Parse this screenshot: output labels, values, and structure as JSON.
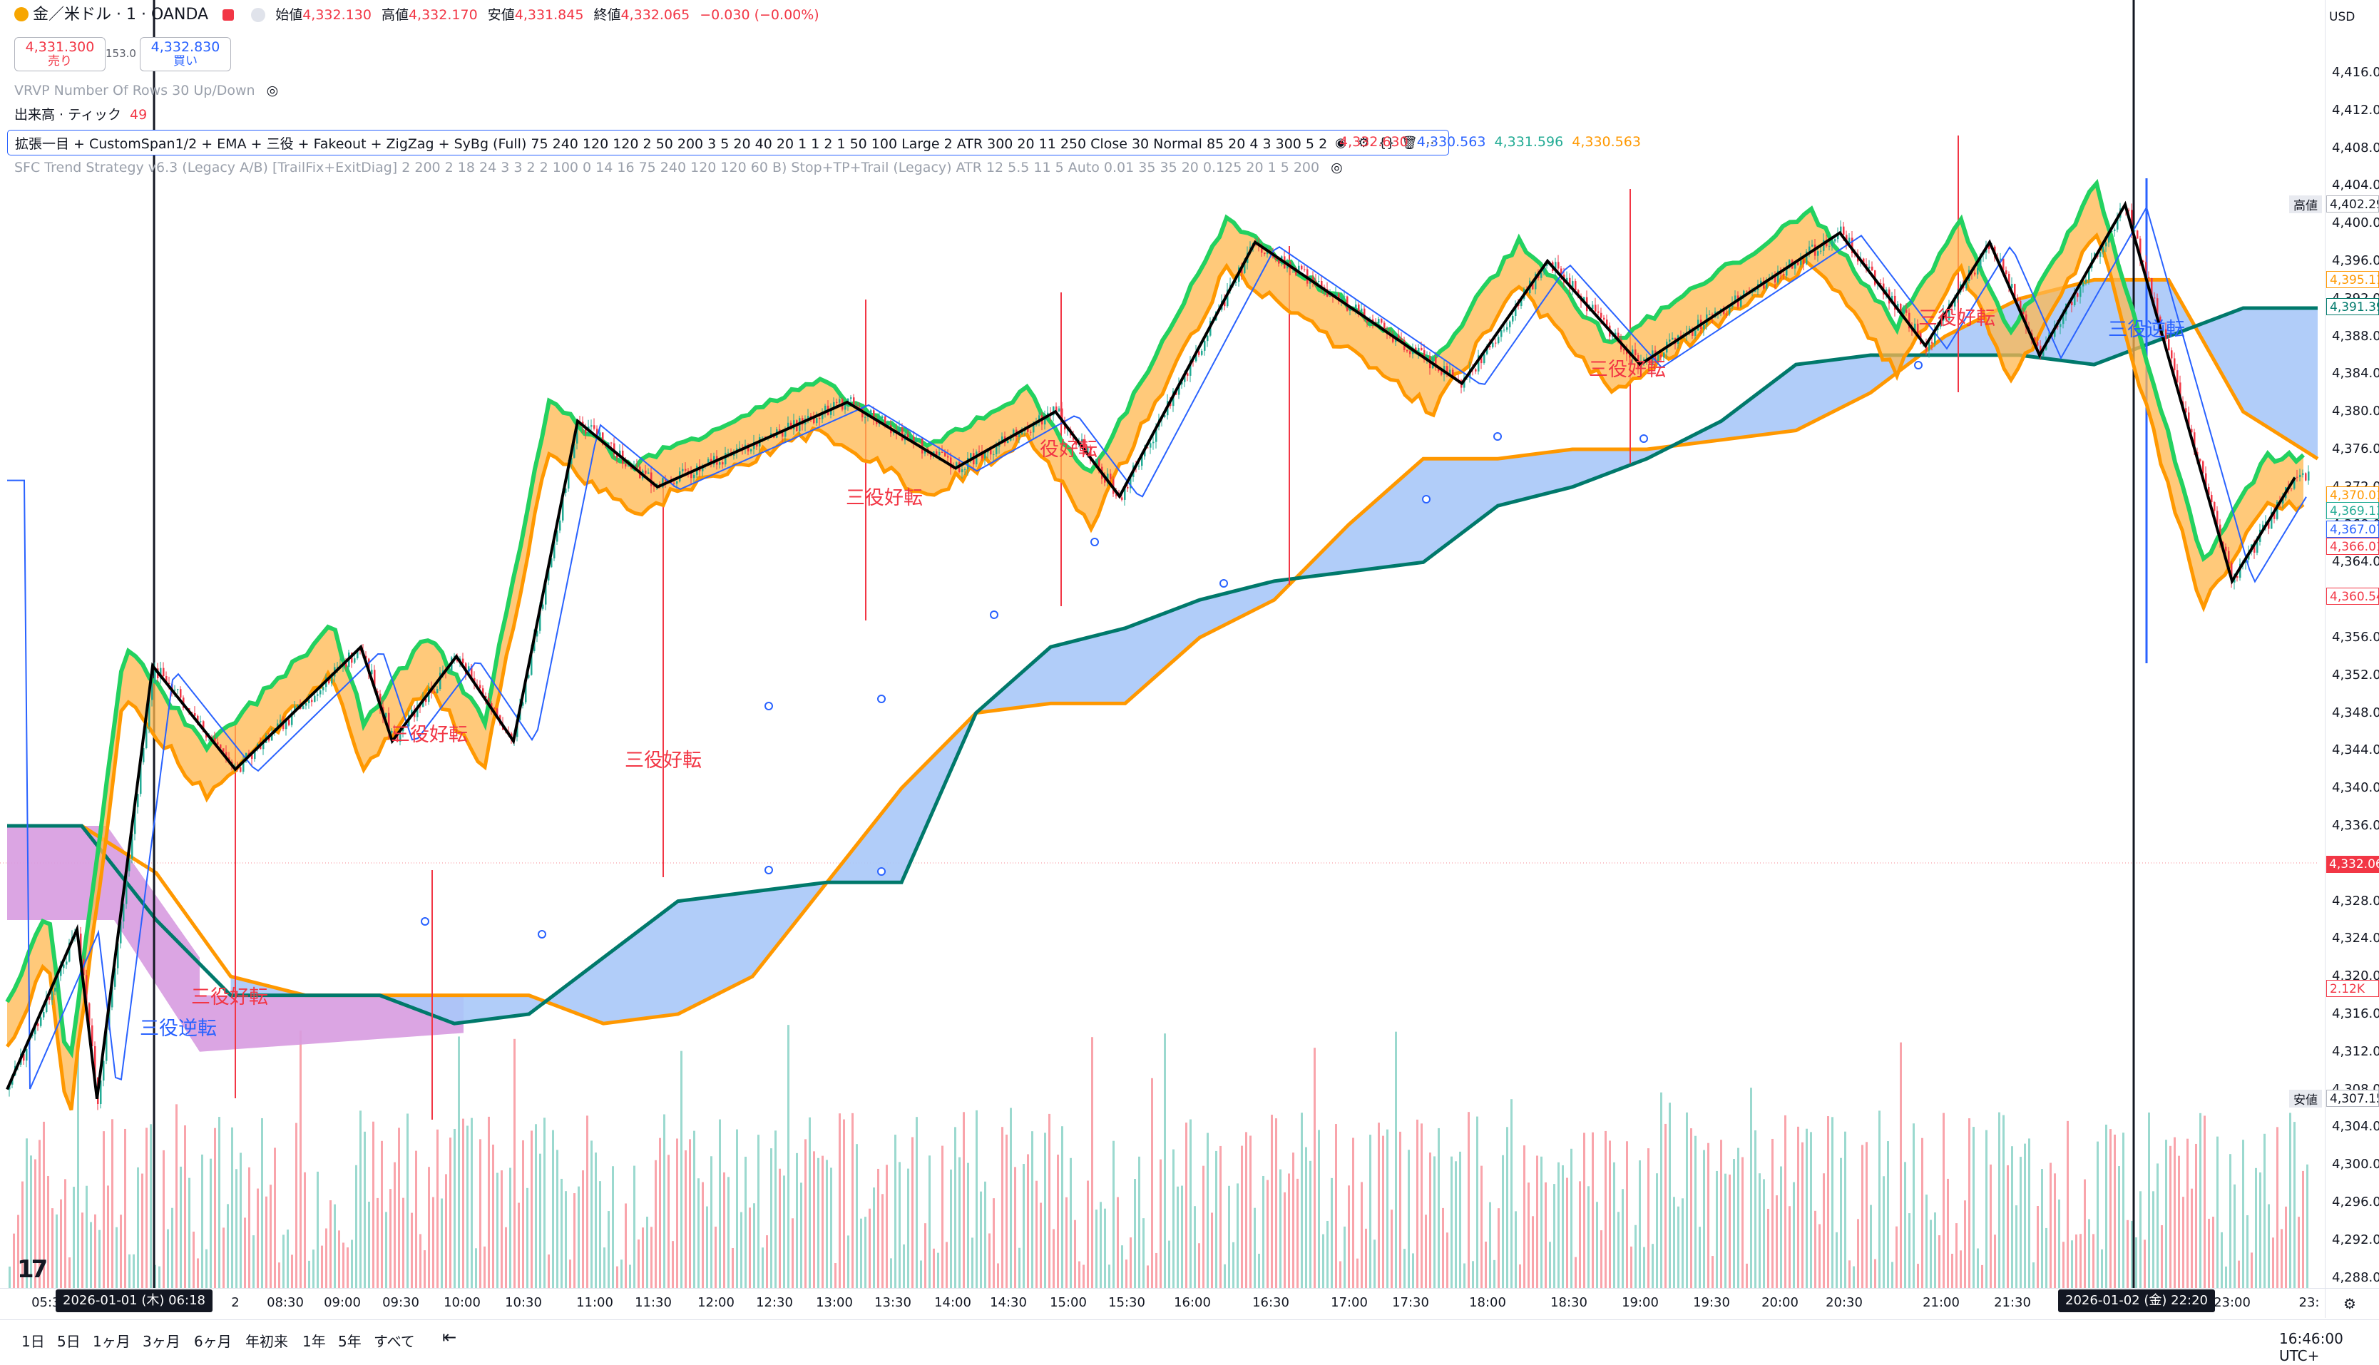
{
  "header": {
    "symbol": "金／米ドル · 1 · OANDA",
    "ohlc_labels": {
      "open": "始値",
      "high": "高値",
      "low": "安値",
      "close": "終値"
    },
    "ohlc_values": {
      "open": "4,332.130",
      "high": "4,332.170",
      "low": "4,331.845",
      "close": "4,332.065",
      "change": "−0.030 (−0.00%)"
    },
    "sell_price": "4,331.300",
    "sell_label": "売り",
    "spread": "153.0",
    "buy_price": "4,332.830",
    "buy_label": "買い",
    "vrvp": "VRVP Number Of Rows 30 Up/Down",
    "volume_label": "出来高 · ティック",
    "volume_value": "49",
    "indicator": "拡張一目 + CustomSpan1/2 + EMA + 三役 + Fakeout + ZigZag + SyBg (Full) 75 240 120 120 2 50 200 3 5 20 40 20 1 1 2 1 50 100 Large 2 ATR 300 20 11 250 Close 30 Normal 85 20 4 3 300 5 2",
    "indicator_values": [
      "4,332.630",
      "4,330.563",
      "4,331.596",
      "4,330.563"
    ],
    "strategy": "SFC Trend Strategy v6.3 (Legacy A/B) [TrailFix+ExitDiag] 2 200 2 18 24 3 3 2 2 100 0 14 16 75 240 120 120 60 B) Stop+TP+Trail (Legacy) ATR 12 5.5 11 5 Auto 0.01 35 35 20 0.125 20 1 5 200"
  },
  "icons": [
    "eye-icon",
    "settings-icon",
    "code-icon",
    "trash-icon",
    "more-icon",
    "gear-icon"
  ],
  "price_axis": {
    "currency": "USD",
    "ticks": [
      "4,416.000",
      "4,412.000",
      "4,408.000",
      "4,404.000",
      "4,400.000",
      "4,396.000",
      "4,392.000",
      "4,388.000",
      "4,384.000",
      "4,380.000",
      "4,376.000",
      "4,372.000",
      "4,368.000",
      "4,364.000",
      "4,360.000",
      "4,356.000",
      "4,352.000",
      "4,348.000",
      "4,344.000",
      "4,340.000",
      "4,336.000",
      "4,332.000",
      "4,328.000",
      "4,324.000",
      "4,320.000",
      "4,316.000",
      "4,312.000",
      "4,308.000",
      "4,304.000",
      "4,300.000",
      "4,296.000",
      "4,292.000",
      "4,288.000"
    ],
    "high_label": "高値",
    "high_value": "4,402.29",
    "low_label": "安値",
    "low_value": "4,307.15",
    "tags": [
      {
        "value": "4,395.11",
        "color": "#ff9800"
      },
      {
        "value": "4,391.39",
        "color": "#00796b"
      },
      {
        "value": "4,370.01",
        "color": "#ff9800"
      },
      {
        "value": "4,369.13",
        "color": "#22ab94"
      },
      {
        "value": "4,367.07",
        "color": "#2962ff"
      },
      {
        "value": "4,366.01",
        "color": "#f23645"
      },
      {
        "value": "4,360.54",
        "color": "#f23645"
      },
      {
        "value": "4,332.06",
        "color": "#f23645"
      },
      {
        "value": "2.12K",
        "color": "#f23645"
      }
    ]
  },
  "time_axis": {
    "labels": [
      "05:30",
      "08:30",
      "09:00",
      "09:30",
      "10:00",
      "10:30",
      "11:00",
      "11:30",
      "12:00",
      "12:30",
      "13:00",
      "13:30",
      "14:00",
      "14:30",
      "15:00",
      "15:30",
      "16:00",
      "16:30",
      "17:00",
      "17:30",
      "18:00",
      "18:30",
      "19:00",
      "19:30",
      "20:00",
      "20:30",
      "21:00",
      "21:30",
      "23:00",
      "23:"
    ],
    "cursor_left": "2026-01-01 (木)   06:18",
    "cursor_right": "2026-01-02 (金)   22:20",
    "fragment": "2",
    "clock": "16:46:00 UTC+"
  },
  "signals": [
    {
      "text": "三役逆転",
      "color": "blue"
    },
    {
      "text": "三役好転",
      "color": "red"
    },
    {
      "text": "三役好転",
      "color": "red"
    },
    {
      "text": "三役好転",
      "color": "red"
    },
    {
      "text": "三役好転",
      "color": "red"
    },
    {
      "text": "役好転",
      "color": "red"
    },
    {
      "text": "三役好転",
      "color": "red"
    },
    {
      "text": "三役好転",
      "color": "red"
    },
    {
      "text": "三役逆転",
      "color": "blue"
    }
  ],
  "ranges": [
    "1日",
    "5日",
    "1ヶ月",
    "3ヶ月",
    "6ヶ月",
    "年初来",
    "1年",
    "5年",
    "すべて"
  ],
  "colors": {
    "bull": "#22ab94",
    "bear": "#f23645",
    "cloud_up": "#a8c8f8",
    "cloud_down": "#d79be0",
    "orange": "#ff9800",
    "teal": "#00796b",
    "green": "#23d160"
  },
  "chart_data": {
    "type": "candlestick",
    "ylim": [
      4286,
      4420
    ],
    "zigzag_prices": [
      4308,
      4325,
      4307,
      4353,
      4342,
      4355,
      4345,
      4354,
      4345,
      4379,
      4372,
      4381,
      4374,
      4380,
      4371,
      4398,
      4383,
      4396,
      4385,
      4399,
      4387,
      4398,
      4386,
      4402,
      4362,
      4373
    ],
    "cloud_upper": [
      4336,
      4336,
      4331,
      4320,
      4318,
      4318,
      4318,
      4318,
      4315,
      4316,
      4320,
      4330,
      4340,
      4348,
      4349,
      4349,
      4356,
      4360,
      4368,
      4375,
      4375,
      4376,
      4376,
      4377,
      4378,
      4382,
      4388,
      4392,
      4394,
      4394,
      4380,
      4375
    ],
    "cloud_lower": [
      4336,
      4336,
      4326,
      4318,
      4318,
      4318,
      4315,
      4316,
      4322,
      4328,
      4329,
      4330,
      4330,
      4348,
      4355,
      4357,
      4360,
      4362,
      4363,
      4364,
      4370,
      4372,
      4375,
      4379,
      4385,
      4386,
      4386,
      4386,
      4385,
      4388,
      4391,
      4391
    ]
  }
}
